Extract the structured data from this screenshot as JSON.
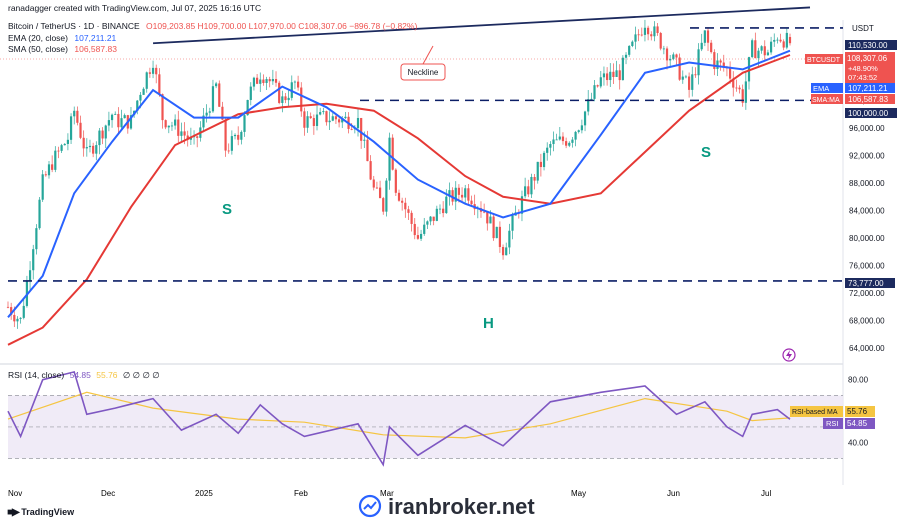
{
  "header": {
    "credit": "ranadagger created with TradingView.com, Jul 07, 2025 16:16 UTC",
    "symbol": "Bitcoin / TetherUS · 1D · BINANCE",
    "ohlc": "O109,203.85 H109,700.00 L107,970.00 C108,307.06 −896.78 (−0.82%)",
    "ema_label": "EMA (20, close)",
    "ema_value": "107,211.21",
    "sma_label": "SMA (50, close)",
    "sma_value": "106,587.83"
  },
  "price_axis": {
    "currency": "USDT",
    "ticks": [
      "64,000.00",
      "68,000.00",
      "72,000.00",
      "76,000.00",
      "80,000.00",
      "84,000.00",
      "88,000.00",
      "92,000.00",
      "96,000.00",
      "100,000.00"
    ]
  },
  "rsi_axis": {
    "ticks": [
      "40.00",
      "80.00"
    ]
  },
  "tags": {
    "resistance": "110,530.00",
    "symbol_tag": "BTCUSDT",
    "last_price": "108,307.06",
    "change": "+48.90%",
    "countdown": "07:43:52",
    "ema_tag": "EMA",
    "ema_tag_value": "107,211.21",
    "sma_tag": "SMA:MA",
    "sma_tag_value": "106,587.83",
    "support_high": "100,000.00",
    "support_low": "73,777.00",
    "rsi_ma_tag": "RSI-based MA",
    "rsi_ma_value": "55.76",
    "rsi_tag": "RSI",
    "rsi_value": "54.85"
  },
  "rsi_header": {
    "label": "RSI (14, close)",
    "v1": "54.85",
    "v2": "55.76",
    "zeros": "∅ ∅ ∅ ∅"
  },
  "annotations": {
    "neckline": "Neckline",
    "left_shoulder": "S",
    "head": "H",
    "right_shoulder": "S"
  },
  "time_axis": [
    "Nov",
    "Dec",
    "2025",
    "Feb",
    "Mar",
    "May",
    "Jun",
    "Jul"
  ],
  "branding": {
    "tv": "TradingView",
    "watermark": "iranbroker.net"
  },
  "colors": {
    "bull": "#26a69a",
    "bear": "#ef5350",
    "ema": "#2962ff",
    "sma": "#e53935",
    "rsi": "#7e57c2",
    "rsi_ma": "#f5c542",
    "lines": "#0c1f66",
    "accent_text": "#089981"
  },
  "chart_data": {
    "type": "candlestick",
    "timeframe": "1D",
    "price_range": [
      62000,
      114000
    ],
    "rsi_range": [
      15,
      90
    ],
    "horizontal_levels": [
      110530,
      100000,
      73777
    ],
    "ohlc_last": {
      "open": 109203.85,
      "high": 109700,
      "low": 107970,
      "close": 108307.06
    },
    "neckline": {
      "from": {
        "date": "2024-12-17",
        "price": 108300
      },
      "to": {
        "date": "2025-07-07",
        "price": 113500
      }
    },
    "close_path": [
      [
        "2024-11-01",
        70000
      ],
      [
        "2024-11-05",
        68000
      ],
      [
        "2024-11-08",
        76500
      ],
      [
        "2024-11-12",
        88000
      ],
      [
        "2024-11-15",
        91000
      ],
      [
        "2024-11-20",
        94500
      ],
      [
        "2024-11-22",
        98500
      ],
      [
        "2024-11-26",
        92000
      ],
      [
        "2024-12-04",
        98000
      ],
      [
        "2024-12-05",
        97000
      ],
      [
        "2024-12-10",
        97000
      ],
      [
        "2024-12-13",
        101500
      ],
      [
        "2024-12-17",
        106000
      ],
      [
        "2024-12-20",
        97500
      ],
      [
        "2024-12-26",
        95500
      ],
      [
        "2024-12-30",
        93500
      ],
      [
        "2025-01-06",
        102000
      ],
      [
        "2025-01-09",
        93000
      ],
      [
        "2025-01-13",
        94500
      ],
      [
        "2025-01-16",
        100500
      ],
      [
        "2025-01-20",
        104000
      ],
      [
        "2025-01-22",
        103500
      ],
      [
        "2025-01-27",
        100000
      ],
      [
        "2025-01-31",
        102500
      ],
      [
        "2025-02-03",
        97000
      ],
      [
        "2025-02-10",
        97500
      ],
      [
        "2025-02-20",
        97000
      ],
      [
        "2025-02-25",
        87000
      ],
      [
        "2025-02-28",
        84500
      ],
      [
        "2025-03-02",
        94500
      ],
      [
        "2025-03-04",
        87500
      ],
      [
        "2025-03-11",
        80000
      ],
      [
        "2025-03-20",
        85500
      ],
      [
        "2025-03-26",
        87000
      ],
      [
        "2025-04-01",
        84000
      ],
      [
        "2025-04-07",
        78500
      ],
      [
        "2025-04-12",
        84500
      ],
      [
        "2025-04-22",
        93500
      ],
      [
        "2025-04-28",
        94500
      ],
      [
        "2025-05-01",
        96500
      ],
      [
        "2025-05-08",
        103000
      ],
      [
        "2025-05-14",
        104000
      ],
      [
        "2025-05-22",
        111500
      ],
      [
        "2025-05-27",
        108500
      ],
      [
        "2025-06-01",
        105000
      ],
      [
        "2025-06-05",
        101500
      ],
      [
        "2025-06-10",
        109500
      ],
      [
        "2025-06-13",
        105500
      ],
      [
        "2025-06-17",
        104500
      ],
      [
        "2025-06-22",
        100500
      ],
      [
        "2025-06-25",
        107500
      ],
      [
        "2025-06-30",
        107000
      ],
      [
        "2025-07-03",
        109500
      ],
      [
        "2025-07-07",
        108307
      ]
    ],
    "ema20": [
      [
        "2024-11-01",
        68500
      ],
      [
        "2024-11-12",
        74500
      ],
      [
        "2024-11-22",
        86500
      ],
      [
        "2024-12-04",
        94000
      ],
      [
        "2024-12-17",
        101500
      ],
      [
        "2024-12-30",
        97500
      ],
      [
        "2025-01-13",
        97500
      ],
      [
        "2025-01-27",
        102000
      ],
      [
        "2025-02-10",
        99000
      ],
      [
        "2025-02-25",
        94000
      ],
      [
        "2025-03-11",
        88500
      ],
      [
        "2025-03-26",
        85000
      ],
      [
        "2025-04-07",
        83000
      ],
      [
        "2025-04-22",
        85000
      ],
      [
        "2025-05-08",
        95000
      ],
      [
        "2025-05-22",
        104000
      ],
      [
        "2025-06-05",
        105500
      ],
      [
        "2025-06-22",
        104500
      ],
      [
        "2025-07-07",
        107211
      ]
    ],
    "sma50": [
      [
        "2024-11-01",
        64500
      ],
      [
        "2024-11-12",
        67000
      ],
      [
        "2024-11-26",
        74000
      ],
      [
        "2024-12-10",
        84500
      ],
      [
        "2024-12-24",
        93500
      ],
      [
        "2025-01-13",
        98000
      ],
      [
        "2025-01-27",
        99000
      ],
      [
        "2025-02-10",
        99500
      ],
      [
        "2025-02-25",
        98500
      ],
      [
        "2025-03-11",
        94500
      ],
      [
        "2025-03-26",
        89000
      ],
      [
        "2025-04-07",
        86000
      ],
      [
        "2025-04-22",
        85000
      ],
      [
        "2025-05-08",
        86500
      ],
      [
        "2025-05-22",
        92500
      ],
      [
        "2025-06-05",
        98500
      ],
      [
        "2025-06-22",
        104000
      ],
      [
        "2025-07-07",
        106588
      ]
    ],
    "rsi14": [
      [
        "2024-11-01",
        60
      ],
      [
        "2024-11-05",
        44
      ],
      [
        "2024-11-12",
        80
      ],
      [
        "2024-11-22",
        85
      ],
      [
        "2024-11-26",
        58
      ],
      [
        "2024-12-05",
        62
      ],
      [
        "2024-12-17",
        68
      ],
      [
        "2024-12-26",
        48
      ],
      [
        "2025-01-06",
        58
      ],
      [
        "2025-01-13",
        46
      ],
      [
        "2025-01-20",
        64
      ],
      [
        "2025-01-27",
        52
      ],
      [
        "2025-02-03",
        44
      ],
      [
        "2025-02-20",
        52
      ],
      [
        "2025-02-28",
        26
      ],
      [
        "2025-03-02",
        50
      ],
      [
        "2025-03-11",
        32
      ],
      [
        "2025-03-26",
        51
      ],
      [
        "2025-04-07",
        38
      ],
      [
        "2025-04-22",
        66
      ],
      [
        "2025-05-08",
        72
      ],
      [
        "2025-05-22",
        76
      ],
      [
        "2025-06-01",
        58
      ],
      [
        "2025-06-10",
        66
      ],
      [
        "2025-06-17",
        50
      ],
      [
        "2025-06-22",
        44
      ],
      [
        "2025-06-25",
        58
      ],
      [
        "2025-07-03",
        61
      ],
      [
        "2025-07-07",
        54.85
      ]
    ],
    "rsi_ma14": [
      [
        "2024-11-01",
        55
      ],
      [
        "2024-11-26",
        72
      ],
      [
        "2024-12-17",
        62
      ],
      [
        "2025-01-13",
        55
      ],
      [
        "2025-02-03",
        53
      ],
      [
        "2025-02-28",
        45
      ],
      [
        "2025-03-26",
        43
      ],
      [
        "2025-04-22",
        52
      ],
      [
        "2025-05-22",
        68
      ],
      [
        "2025-06-17",
        60
      ],
      [
        "2025-06-25",
        54
      ],
      [
        "2025-07-07",
        55.76
      ]
    ]
  }
}
